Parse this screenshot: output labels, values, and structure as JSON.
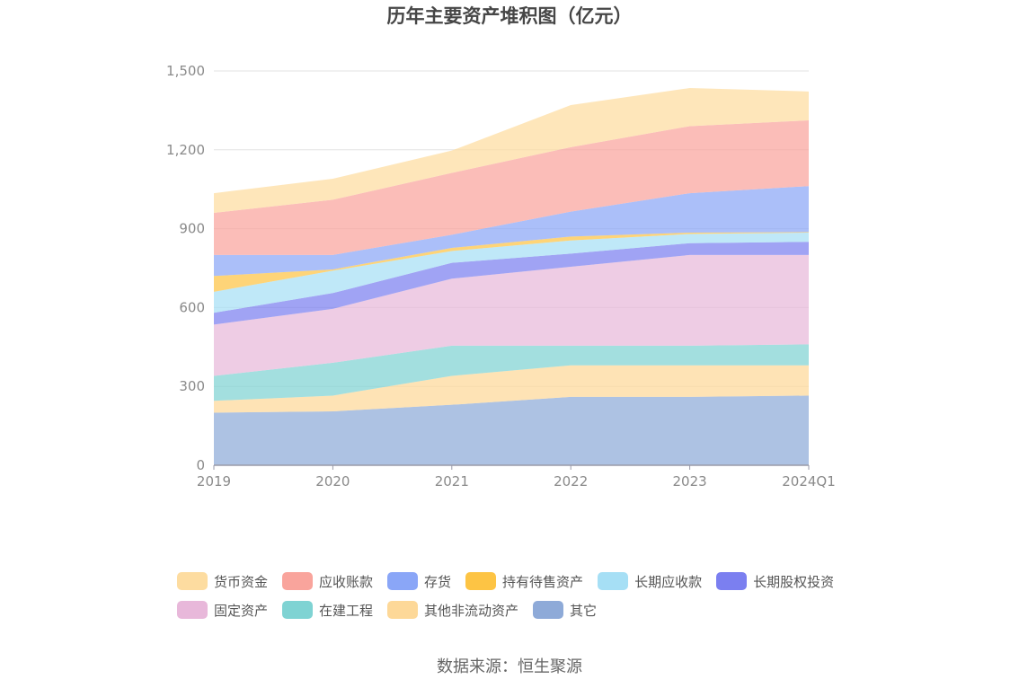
{
  "chart_data": {
    "type": "area",
    "stacked": true,
    "title": "历年主要资产堆积图（亿元）",
    "source": "数据来源：恒生聚源",
    "categories": [
      "2019",
      "2020",
      "2021",
      "2022",
      "2023",
      "2024Q1"
    ],
    "ylim": [
      0,
      1500
    ],
    "yticks": [
      "0",
      "300",
      "600",
      "900",
      "1,200",
      "1,500"
    ],
    "grid": true,
    "legend_position": "bottom",
    "series": [
      {
        "name": "其它",
        "color": "#8eaad8",
        "values": [
          200,
          205,
          230,
          260,
          260,
          265
        ]
      },
      {
        "name": "其他非流动资产",
        "color": "#fdd898",
        "values": [
          45,
          60,
          110,
          120,
          120,
          115
        ]
      },
      {
        "name": "在建工程",
        "color": "#7fd3d3",
        "values": [
          95,
          125,
          115,
          75,
          75,
          80
        ]
      },
      {
        "name": "固定资产",
        "color": "#e8b8da",
        "values": [
          195,
          205,
          255,
          300,
          345,
          340
        ]
      },
      {
        "name": "长期股权投资",
        "color": "#7b7ff0",
        "values": [
          45,
          60,
          60,
          50,
          45,
          50
        ]
      },
      {
        "name": "长期应收款",
        "color": "#a6dff5",
        "values": [
          80,
          85,
          45,
          50,
          35,
          35
        ]
      },
      {
        "name": "持有待售资产",
        "color": "#fdc444",
        "values": [
          60,
          5,
          12,
          15,
          5,
          2
        ]
      },
      {
        "name": "存货",
        "color": "#8aa6f7",
        "values": [
          80,
          55,
          50,
          95,
          150,
          175
        ]
      },
      {
        "name": "应收账款",
        "color": "#f9a49c",
        "values": [
          160,
          210,
          235,
          245,
          255,
          250
        ]
      },
      {
        "name": "货币资金",
        "color": "#fddca0",
        "values": [
          75,
          80,
          85,
          160,
          145,
          110
        ]
      }
    ],
    "legend_order": [
      [
        "货币资金",
        "应收账款",
        "存货",
        "持有待售资产",
        "长期应收款",
        "长期股权投资"
      ],
      [
        "固定资产",
        "在建工程",
        "其他非流动资产",
        "其它"
      ]
    ]
  }
}
